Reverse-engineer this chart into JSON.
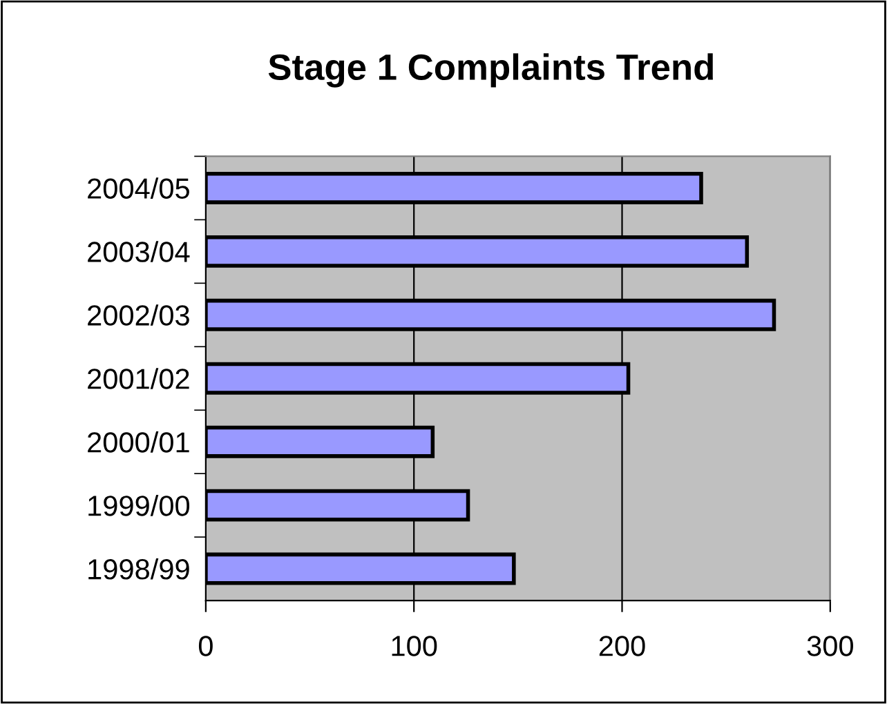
{
  "chart_data": {
    "type": "bar",
    "orientation": "horizontal",
    "title": "Stage 1 Complaints Trend",
    "categories": [
      "2004/05",
      "2003/04",
      "2002/03",
      "2001/02",
      "2000/01",
      "1999/00",
      "1998/99"
    ],
    "values": [
      238,
      260,
      273,
      203,
      109,
      126,
      148
    ],
    "color": "#9999ff",
    "xlim": [
      0,
      300
    ],
    "xticks": [
      0,
      100,
      200,
      300
    ],
    "grid": "x",
    "legend": false
  }
}
